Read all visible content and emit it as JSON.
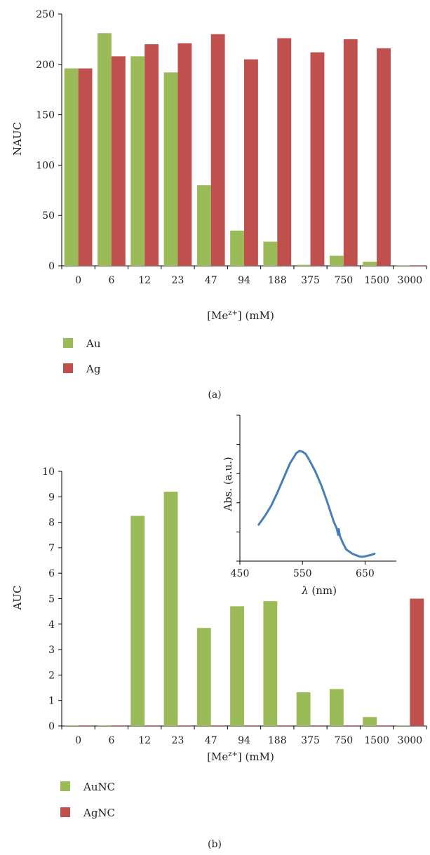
{
  "chart_data": [
    {
      "type": "bar",
      "panel_label": "(a)",
      "categories": [
        "0",
        "6",
        "12",
        "23",
        "47",
        "94",
        "188",
        "375",
        "750",
        "1500",
        "3000"
      ],
      "series": [
        {
          "name": "Au",
          "color": "#9bbb59",
          "values": [
            196,
            231,
            208,
            192,
            80,
            35,
            24,
            1,
            10,
            4,
            0
          ]
        },
        {
          "name": "Ag",
          "color": "#c0504d",
          "values": [
            196,
            208,
            220,
            221,
            230,
            205,
            226,
            212,
            225,
            216,
            0
          ]
        }
      ],
      "ylabel": "NAUC",
      "xlabel_main": "[Me",
      "xlabel_sup": "z+",
      "xlabel_tail": "] (mM)",
      "ylim": [
        0,
        250
      ],
      "yticks": [
        "0",
        "50",
        "100",
        "150",
        "200",
        "250"
      ],
      "legend_position": "bottom-left"
    },
    {
      "type": "bar",
      "panel_label": "(b)",
      "categories": [
        "0",
        "6",
        "12",
        "23",
        "47",
        "94",
        "188",
        "375",
        "750",
        "1500",
        "3000"
      ],
      "series": [
        {
          "name": "AuNC",
          "color": "#9bbb59",
          "values": [
            0,
            0,
            8.25,
            9.2,
            3.85,
            4.7,
            4.9,
            1.32,
            1.45,
            0.35,
            0
          ]
        },
        {
          "name": "AgNC",
          "color": "#c0504d",
          "values": [
            0,
            0,
            0,
            0,
            0,
            0,
            0,
            0,
            0,
            0,
            5.0
          ]
        }
      ],
      "ylabel": "AUC",
      "xlabel_main": "[Me",
      "xlabel_sup": "z+",
      "xlabel_tail": "] (mM)",
      "ylim": [
        0,
        10
      ],
      "yticks": [
        "0",
        "1",
        "2",
        "3",
        "4",
        "5",
        "6",
        "7",
        "8",
        "9",
        "10"
      ],
      "legend_position": "bottom-left",
      "inset": {
        "type": "line",
        "color": "#4a7ebb",
        "ylabel": "Abs. (a.u.)",
        "xlabel_symbol": "λ",
        "xlabel_tail": " (nm)",
        "xticks": [
          "450",
          "550",
          "650"
        ],
        "xlim": [
          450,
          700
        ],
        "ylim": [
          0,
          1
        ],
        "x": [
          480,
          490,
          500,
          510,
          520,
          530,
          540,
          545,
          550,
          555,
          560,
          570,
          580,
          590,
          600,
          605,
          607,
          608,
          610,
          615,
          620,
          630,
          640,
          645,
          650,
          655,
          660,
          665
        ],
        "y": [
          0.25,
          0.31,
          0.38,
          0.47,
          0.57,
          0.67,
          0.74,
          0.755,
          0.75,
          0.735,
          0.7,
          0.62,
          0.52,
          0.4,
          0.27,
          0.22,
          0.18,
          0.22,
          0.17,
          0.12,
          0.08,
          0.05,
          0.033,
          0.03,
          0.032,
          0.038,
          0.043,
          0.05
        ]
      }
    }
  ]
}
